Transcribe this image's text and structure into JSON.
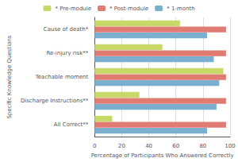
{
  "chart_data": {
    "type": "bar",
    "orientation": "horizontal",
    "categories": [
      "Cause of death*",
      "Re-injury risk**",
      "Teachable moment",
      "Discharge Instructions**",
      "All Correct**"
    ],
    "series": [
      {
        "name": "* Pre-module",
        "color": "#c8d96a",
        "values": [
          63,
          50,
          95,
          33,
          13
        ]
      },
      {
        "name": "* Post-module",
        "color": "#e07b72",
        "values": [
          97,
          97,
          97,
          97,
          97
        ]
      },
      {
        "name": "* 1-month",
        "color": "#7aafcf",
        "values": [
          83,
          88,
          92,
          90,
          83
        ]
      }
    ],
    "xlabel": "Percentage of Participants Who Answered Correctly",
    "ylabel": "Specific Knowledge Questions",
    "xlim": [
      0,
      100
    ],
    "xticks": [
      0,
      20,
      40,
      60,
      80,
      100
    ],
    "grid": true,
    "legend": "top"
  }
}
